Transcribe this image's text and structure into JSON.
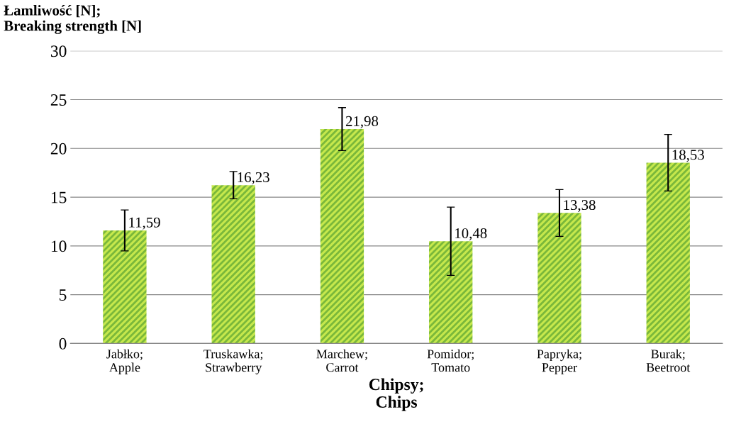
{
  "chart_data": {
    "type": "bar",
    "ylabel": "Łamliwość [N];\nBreaking strength [N]",
    "xlabel": "Chipsy;\nChips",
    "categories": [
      "Jabłko;\nApple",
      "Truskawka;\nStrawberry",
      "Marchew;\nCarrot",
      "Pomidor;\nTomato",
      "Papryka;\nPepper",
      "Burak;\nBeetroot"
    ],
    "values": [
      11.59,
      16.23,
      21.98,
      10.48,
      13.38,
      18.53
    ],
    "value_labels": [
      "11,59",
      "16,23",
      "21,98",
      "10,48",
      "13,38",
      "18,53"
    ],
    "errors": [
      2.1,
      1.4,
      2.2,
      3.5,
      2.4,
      2.9
    ],
    "color": "#c6e84c",
    "ylim": [
      0,
      30
    ],
    "yticks": [
      0,
      5,
      10,
      15,
      20,
      25,
      30
    ],
    "grid": "y",
    "legend": false
  }
}
